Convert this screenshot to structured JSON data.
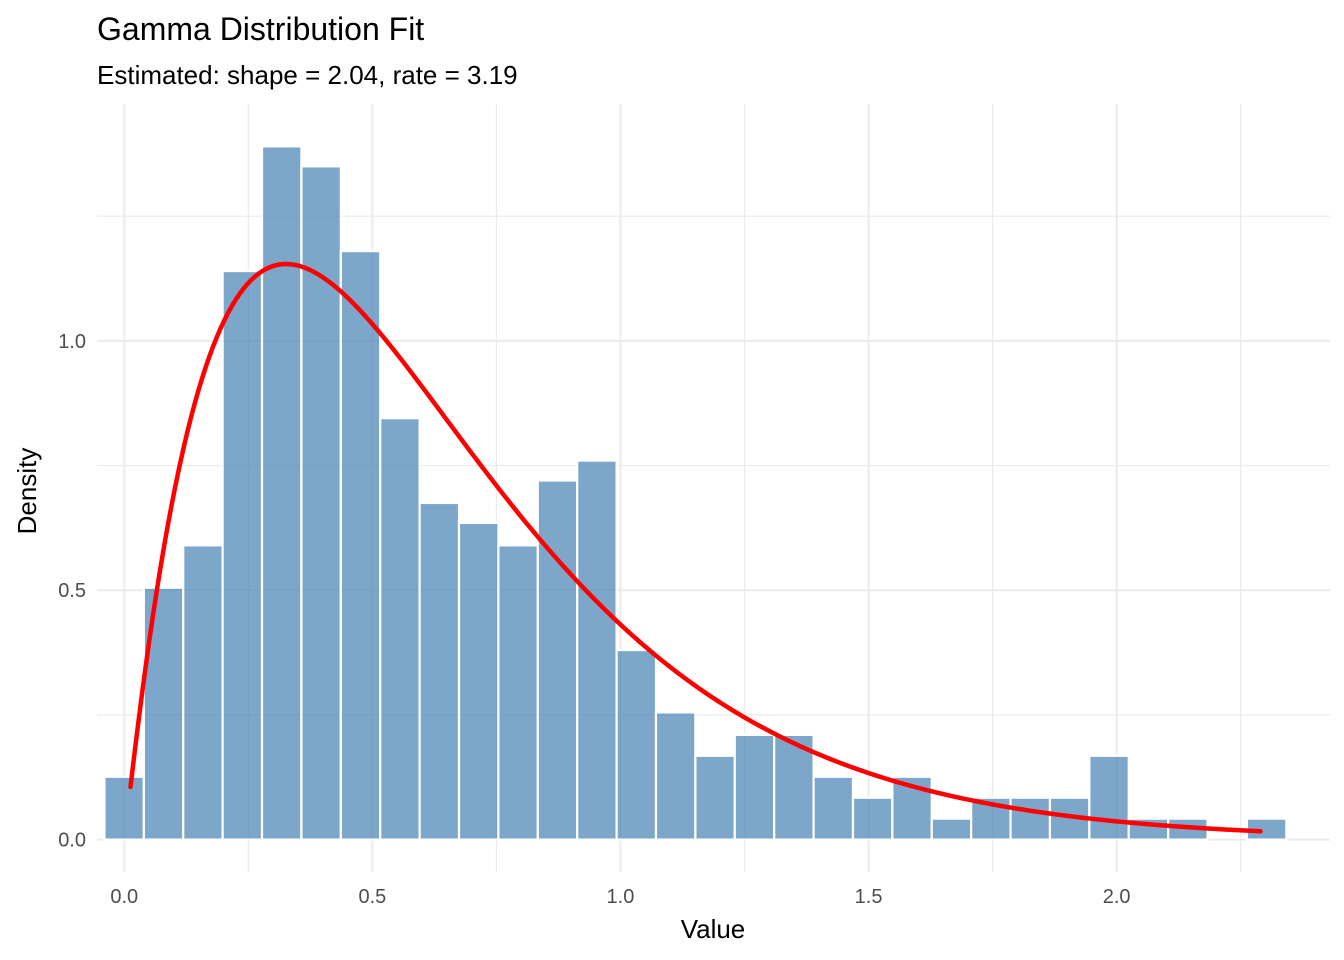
{
  "chart_data": {
    "type": "bar",
    "title": "Gamma Distribution Fit",
    "subtitle": "Estimated: shape = 2.04, rate = 3.19",
    "xlabel": "Value",
    "ylabel": "Density",
    "xlim": [
      -0.055,
      2.43
    ],
    "ylim": [
      -0.065,
      1.475
    ],
    "x_ticks": [
      0.0,
      0.5,
      1.0,
      1.5,
      2.0
    ],
    "x_tick_labels": [
      "0.0",
      "0.5",
      "1.0",
      "1.5",
      "2.0"
    ],
    "y_ticks": [
      0.0,
      0.5,
      1.0
    ],
    "y_tick_labels": [
      "0.0",
      "0.5",
      "1.0"
    ],
    "grid": true,
    "histogram": {
      "series_name": "Density",
      "color": "#4682B4",
      "opacity": 0.7,
      "bin_width": 0.0794,
      "bin_start": -0.04,
      "values": [
        0.126,
        0.505,
        0.59,
        1.14,
        1.39,
        1.35,
        1.18,
        0.845,
        0.675,
        0.635,
        0.59,
        0.72,
        0.76,
        0.38,
        0.255,
        0.168,
        0.21,
        0.21,
        0.126,
        0.084,
        0.126,
        0.042,
        0.084,
        0.084,
        0.084,
        0.168,
        0.042,
        0.042,
        0.0,
        0.042
      ]
    },
    "fit_curve": {
      "name": "Gamma density",
      "color": "#ff0000",
      "distribution": "gamma",
      "shape": 2.04,
      "rate": 3.19,
      "x_range": [
        0.0125,
        2.29
      ]
    }
  }
}
